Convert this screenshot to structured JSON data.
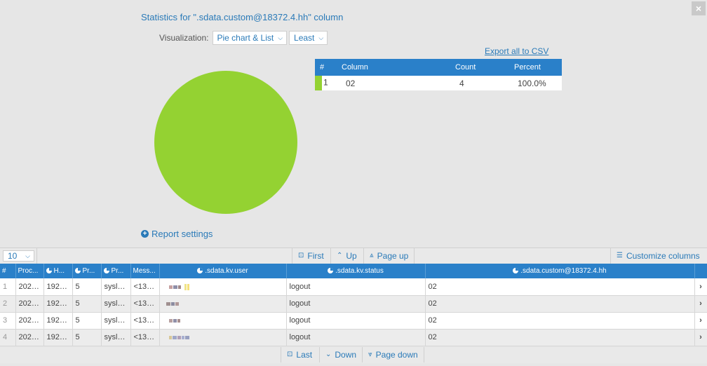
{
  "title": "Statistics for \".sdata.custom@18372.4.hh\" column",
  "visualization": {
    "label": "Visualization:",
    "type_value": "Pie chart & List",
    "order_value": "Least"
  },
  "export_label": "Export all to CSV",
  "colors": {
    "accent": "#2a80c9",
    "slice": "#94d232"
  },
  "chart_data": {
    "type": "pie",
    "categories": [
      "02"
    ],
    "values": [
      4
    ],
    "percent": [
      100.0
    ],
    "colors": [
      "#94d232"
    ]
  },
  "stats_table": {
    "headers": [
      "#",
      "Column",
      "Count",
      "Percent"
    ],
    "rows": [
      {
        "num": "1",
        "column": "02",
        "count": "4",
        "percent": "100.0%"
      }
    ]
  },
  "report_settings_label": "Report settings",
  "toolbar": {
    "page_size": "10",
    "first": "First",
    "up": "Up",
    "page_up": "Page up",
    "customize": "Customize columns",
    "last": "Last",
    "down": "Down",
    "page_down": "Page down"
  },
  "grid": {
    "headers": [
      "#",
      "Proc...",
      "H...",
      "Pr...",
      "Pr...",
      "Mess...",
      ".sdata.kv.user",
      ".sdata.kv.status",
      ".sdata.custom@18372.4.hh"
    ],
    "rows": [
      {
        "num": "1",
        "proc": "2021...",
        "host": "192.1...",
        "pri": "5",
        "prog": "syslo...",
        "msg": "<133...",
        "status": "logout",
        "custom": "02"
      },
      {
        "num": "2",
        "proc": "2021...",
        "host": "192.1...",
        "pri": "5",
        "prog": "syslo...",
        "msg": "<133...",
        "status": "logout",
        "custom": "02"
      },
      {
        "num": "3",
        "proc": "2021...",
        "host": "192.1...",
        "pri": "5",
        "prog": "syslo...",
        "msg": "<133...",
        "status": "logout",
        "custom": "02"
      },
      {
        "num": "4",
        "proc": "2021...",
        "host": "192.1...",
        "pri": "5",
        "prog": "syslo...",
        "msg": "<133...",
        "status": "logout",
        "custom": "02"
      }
    ]
  }
}
